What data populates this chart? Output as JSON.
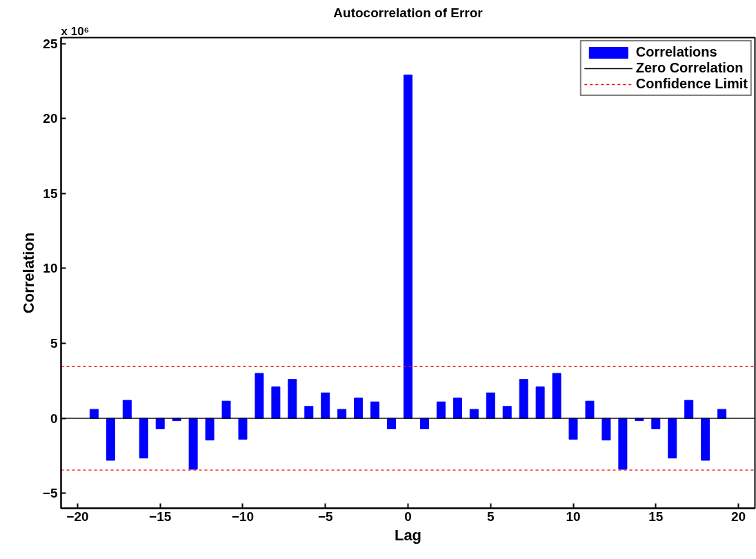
{
  "chart_data": {
    "type": "bar",
    "title": "Autocorrelation of Error",
    "xlabel": "Lag",
    "ylabel": "Correlation",
    "annotations": [
      "x 10⁶"
    ],
    "x": [
      -19,
      -18,
      -17,
      -16,
      -15,
      -14,
      -13,
      -12,
      -11,
      -10,
      -9,
      -8,
      -7,
      -6,
      -5,
      -4,
      -3,
      -2,
      -1,
      0,
      1,
      2,
      3,
      4,
      5,
      6,
      7,
      8,
      9,
      10,
      11,
      12,
      13,
      14,
      15,
      16,
      17,
      18,
      19
    ],
    "series": [
      {
        "name": "Correlations",
        "color": "#0000ff",
        "values": [
          0.6,
          -2.8,
          1.2,
          -2.65,
          -0.7,
          -0.15,
          -3.4,
          -1.45,
          1.15,
          -1.4,
          3.0,
          2.1,
          2.6,
          0.8,
          1.7,
          0.6,
          1.35,
          1.1,
          -0.7,
          22.9,
          -0.7,
          1.1,
          1.35,
          0.6,
          1.7,
          0.8,
          2.6,
          2.1,
          3.0,
          -1.4,
          1.15,
          -1.45,
          -3.4,
          -0.15,
          -0.7,
          -2.65,
          1.2,
          -2.8,
          0.6
        ]
      }
    ],
    "ref_lines": [
      {
        "axis": "y",
        "value": 0,
        "label": "Zero Correlation",
        "color": "#000000",
        "line_style": "solid"
      },
      {
        "axis": "y",
        "value": 3.45,
        "label": "Confidence Limit",
        "color": "#ff0000",
        "line_style": "dashed"
      },
      {
        "axis": "y",
        "value": -3.45,
        "color": "#ff0000",
        "line_style": "dashed"
      }
    ],
    "xlim": [
      -21,
      21
    ],
    "xticks": [
      -20,
      -15,
      -10,
      -5,
      0,
      5,
      10,
      15,
      20
    ],
    "ylim": [
      -6,
      25.4
    ],
    "yticks": [
      -5,
      0,
      5,
      10,
      15,
      20,
      25
    ],
    "grid": false,
    "legend": "top right"
  }
}
